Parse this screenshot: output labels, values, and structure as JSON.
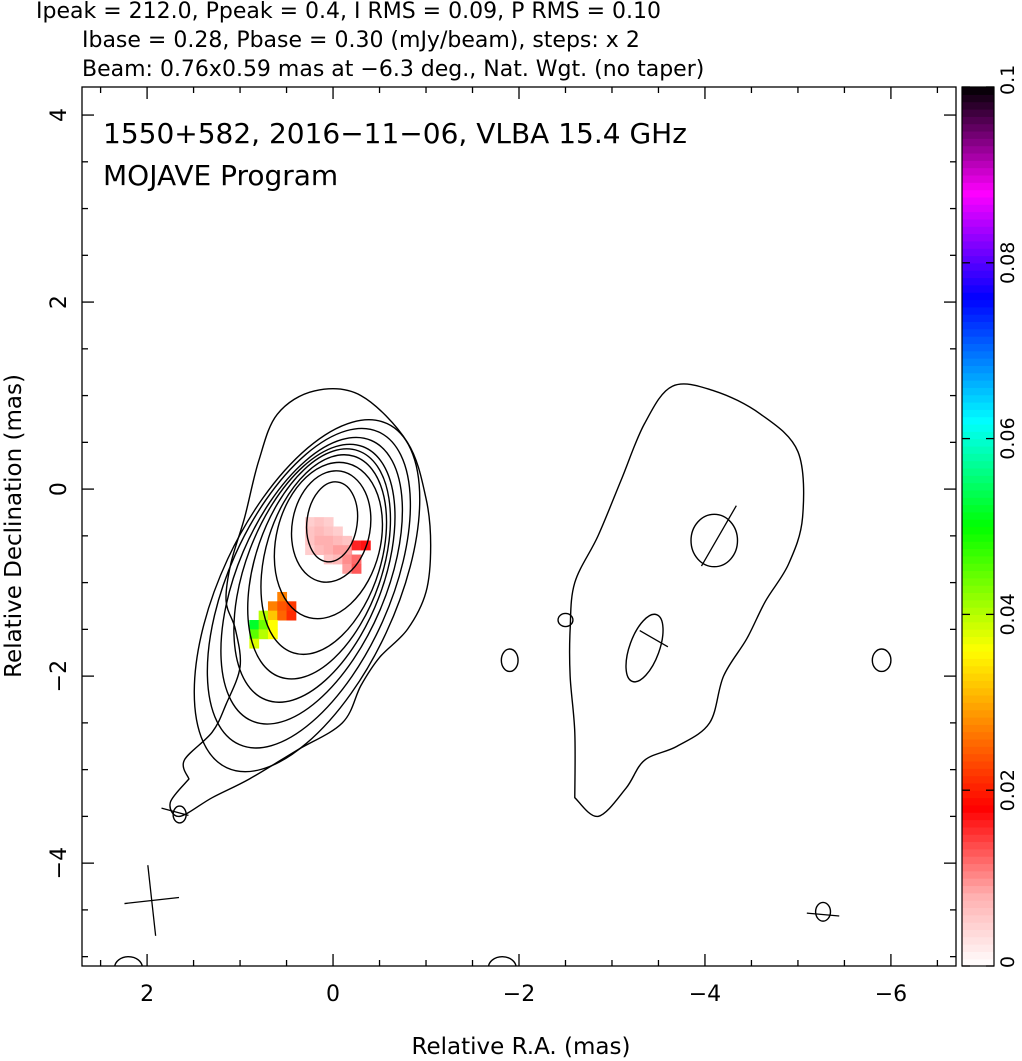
{
  "header": {
    "line1": "Ipeak = 212.0, Ppeak = 0.4, I RMS = 0.09, P RMS = 0.10",
    "line2": "Ibase = 0.28, Pbase = 0.30 (mJy/beam), steps: x 2",
    "line3": "Beam: 0.76x0.59 mas at −6.3 deg., Nat. Wgt. (no taper)"
  },
  "annotations": {
    "source": "1550+582, 2016−11−06, VLBA 15.4 GHz",
    "program": "MOJAVE Program"
  },
  "chart_data": {
    "type": "heatmap",
    "xlabel": "Relative R.A. (mas)",
    "ylabel": "Relative Declination (mas)",
    "xlim": [
      2.7,
      -6.7
    ],
    "ylim": [
      -5.1,
      4.3
    ],
    "x_ticks": [
      2,
      0,
      -2,
      -4,
      -6
    ],
    "x_tick_labels": [
      "2",
      "0",
      "−2",
      "−4",
      "−6"
    ],
    "y_ticks": [
      4,
      2,
      0,
      -2,
      -4
    ],
    "y_tick_labels": [
      "4",
      "2",
      "0",
      "−2",
      "−4"
    ],
    "colorbar": {
      "min": 0,
      "max": 0.1,
      "ticks": [
        0,
        0.02,
        0.04,
        0.06,
        0.08,
        0.1
      ],
      "tick_labels": [
        "0",
        "0.02",
        "0.04",
        "0.06",
        "0.08",
        "0.1"
      ],
      "colors": [
        "#ffffff",
        "#ffb0b0",
        "#ff0000",
        "#ff8000",
        "#ffff00",
        "#00ff00",
        "#00ffff",
        "#0000ff",
        "#ff00ff",
        "#000000"
      ]
    },
    "ipeak_mjy": 212.0,
    "ppeak_mjy": 0.4,
    "irms_mjy": 0.09,
    "prms_mjy": 0.1,
    "ibase_mjy": 0.28,
    "pbase_mjy": 0.3,
    "contour_step_factor": 2,
    "beam": {
      "major_mas": 0.76,
      "minor_mas": 0.59,
      "pa_deg": -6.3
    },
    "core": {
      "x": 0.0,
      "y": -0.35
    },
    "contour_levels": [
      {
        "cx": 0.01,
        "cy": -0.35,
        "rx": 0.27,
        "ry": 0.43,
        "rot": 8
      },
      {
        "cx": 0.02,
        "cy": -0.4,
        "rx": 0.42,
        "ry": 0.6,
        "rot": 10
      },
      {
        "cx": 0.05,
        "cy": -0.55,
        "rx": 0.56,
        "ry": 0.85,
        "rot": 14
      },
      {
        "cx": 0.1,
        "cy": -0.7,
        "rx": 0.62,
        "ry": 1.1,
        "rot": 17
      },
      {
        "cx": 0.15,
        "cy": -0.8,
        "rx": 0.68,
        "ry": 1.28,
        "rot": 19
      },
      {
        "cx": 0.2,
        "cy": -0.9,
        "rx": 0.74,
        "ry": 1.45,
        "rot": 21
      },
      {
        "cx": 0.23,
        "cy": -0.98,
        "rx": 0.8,
        "ry": 1.63,
        "rot": 23
      },
      {
        "cx": 0.26,
        "cy": -1.06,
        "rx": 0.87,
        "ry": 1.83,
        "rot": 24
      },
      {
        "cx": 0.28,
        "cy": -1.14,
        "rx": 0.94,
        "ry": 2.03,
        "rot": 25
      }
    ],
    "outer_contour": [
      [
        1.55,
        -3.1
      ],
      [
        1.6,
        -2.9
      ],
      [
        1.3,
        -2.6
      ],
      [
        1.15,
        -2.3
      ],
      [
        1.0,
        -1.9
      ],
      [
        1.05,
        -1.5
      ],
      [
        1.15,
        -1.2
      ],
      [
        1.1,
        -0.8
      ],
      [
        0.95,
        -0.3
      ],
      [
        0.8,
        0.3
      ],
      [
        0.6,
        0.8
      ],
      [
        0.2,
        1.05
      ],
      [
        -0.3,
        1.0
      ],
      [
        -0.8,
        0.5
      ],
      [
        -1.0,
        -0.1
      ],
      [
        -1.05,
        -0.6
      ],
      [
        -1.0,
        -1.1
      ],
      [
        -0.8,
        -1.5
      ],
      [
        -0.5,
        -1.8
      ],
      [
        -0.3,
        -2.1
      ],
      [
        -0.1,
        -2.5
      ],
      [
        0.4,
        -2.8
      ],
      [
        0.9,
        -3.1
      ],
      [
        1.3,
        -3.3
      ],
      [
        1.65,
        -3.5
      ],
      [
        1.75,
        -3.35
      ],
      [
        1.55,
        -3.1
      ]
    ],
    "second_contour": [
      [
        -2.6,
        -3.3
      ],
      [
        -2.6,
        -2.6
      ],
      [
        -2.55,
        -2.0
      ],
      [
        -2.55,
        -1.5
      ],
      [
        -2.6,
        -1.0
      ],
      [
        -2.85,
        -0.5
      ],
      [
        -3.1,
        0.1
      ],
      [
        -3.35,
        0.7
      ],
      [
        -3.65,
        1.1
      ],
      [
        -4.1,
        1.05
      ],
      [
        -4.6,
        0.8
      ],
      [
        -5.0,
        0.4
      ],
      [
        -5.05,
        -0.3
      ],
      [
        -4.9,
        -0.8
      ],
      [
        -4.65,
        -1.2
      ],
      [
        -4.45,
        -1.6
      ],
      [
        -4.2,
        -2.0
      ],
      [
        -4.05,
        -2.5
      ],
      [
        -3.7,
        -2.75
      ],
      [
        -3.35,
        -2.9
      ],
      [
        -3.15,
        -3.2
      ],
      [
        -2.85,
        -3.5
      ],
      [
        -2.6,
        -3.3
      ]
    ],
    "islands": [
      {
        "cx": 1.65,
        "cy": -3.48,
        "rx": 0.07,
        "ry": 0.09
      },
      {
        "cx": -1.9,
        "cy": -1.83,
        "rx": 0.09,
        "ry": 0.12
      },
      {
        "cx": -2.5,
        "cy": -1.4,
        "rx": 0.08,
        "ry": 0.07
      },
      {
        "cx": -3.35,
        "cy": -1.7,
        "rx": 0.16,
        "ry": 0.38,
        "rot": 20
      },
      {
        "cx": -4.1,
        "cy": -0.55,
        "rx": 0.25,
        "ry": 0.28
      },
      {
        "cx": -5.9,
        "cy": -1.83,
        "rx": 0.1,
        "ry": 0.12
      },
      {
        "cx": -5.27,
        "cy": -4.52,
        "rx": 0.08,
        "ry": 0.1
      },
      {
        "cx": 2.2,
        "cy": -5.12,
        "rx": 0.15,
        "ry": 0.12
      },
      {
        "cx": -1.82,
        "cy": -5.12,
        "rx": 0.15,
        "ry": 0.12
      }
    ],
    "polarization_pixels": [
      {
        "x": 0.25,
        "y": -0.35,
        "p": 0.005
      },
      {
        "x": 0.15,
        "y": -0.35,
        "p": 0.006
      },
      {
        "x": 0.05,
        "y": -0.35,
        "p": 0.005
      },
      {
        "x": 0.25,
        "y": -0.45,
        "p": 0.006
      },
      {
        "x": 0.15,
        "y": -0.45,
        "p": 0.007
      },
      {
        "x": 0.05,
        "y": -0.45,
        "p": 0.006
      },
      {
        "x": -0.05,
        "y": -0.45,
        "p": 0.005
      },
      {
        "x": 0.25,
        "y": -0.55,
        "p": 0.006
      },
      {
        "x": 0.15,
        "y": -0.55,
        "p": 0.008
      },
      {
        "x": 0.05,
        "y": -0.55,
        "p": 0.008
      },
      {
        "x": -0.05,
        "y": -0.55,
        "p": 0.007
      },
      {
        "x": -0.15,
        "y": -0.55,
        "p": 0.006
      },
      {
        "x": 0.25,
        "y": -0.65,
        "p": 0.005
      },
      {
        "x": 0.15,
        "y": -0.65,
        "p": 0.007
      },
      {
        "x": 0.05,
        "y": -0.65,
        "p": 0.008
      },
      {
        "x": -0.05,
        "y": -0.65,
        "p": 0.009
      },
      {
        "x": -0.15,
        "y": -0.65,
        "p": 0.009
      },
      {
        "x": -0.25,
        "y": -0.6,
        "p": 0.016
      },
      {
        "x": -0.35,
        "y": -0.6,
        "p": 0.017
      },
      {
        "x": 0.05,
        "y": -0.75,
        "p": 0.006
      },
      {
        "x": -0.05,
        "y": -0.75,
        "p": 0.007
      },
      {
        "x": -0.15,
        "y": -0.75,
        "p": 0.01
      },
      {
        "x": -0.25,
        "y": -0.75,
        "p": 0.012
      },
      {
        "x": -0.15,
        "y": -0.85,
        "p": 0.009
      },
      {
        "x": -0.25,
        "y": -0.85,
        "p": 0.013
      },
      {
        "x": 0.55,
        "y": -1.15,
        "p": 0.027
      },
      {
        "x": 0.65,
        "y": -1.25,
        "p": 0.027
      },
      {
        "x": 0.55,
        "y": -1.25,
        "p": 0.024
      },
      {
        "x": 0.45,
        "y": -1.25,
        "p": 0.022
      },
      {
        "x": 0.75,
        "y": -1.35,
        "p": 0.04
      },
      {
        "x": 0.65,
        "y": -1.35,
        "p": 0.032
      },
      {
        "x": 0.55,
        "y": -1.35,
        "p": 0.025
      },
      {
        "x": 0.45,
        "y": -1.35,
        "p": 0.021
      },
      {
        "x": 0.85,
        "y": -1.45,
        "p": 0.052
      },
      {
        "x": 0.75,
        "y": -1.45,
        "p": 0.044
      },
      {
        "x": 0.65,
        "y": -1.45,
        "p": 0.036
      },
      {
        "x": 0.85,
        "y": -1.55,
        "p": 0.045
      },
      {
        "x": 0.75,
        "y": -1.55,
        "p": 0.04
      },
      {
        "x": 0.65,
        "y": -1.55,
        "p": 0.036
      },
      {
        "x": 0.85,
        "y": -1.65,
        "p": 0.038
      }
    ],
    "evpa_vectors": [
      {
        "x": -4.15,
        "y": -0.5,
        "len": 0.75,
        "ang": 60
      },
      {
        "x": -3.45,
        "y": -1.6,
        "len": 0.35,
        "ang": -30
      },
      {
        "x": 1.7,
        "y": -3.45,
        "len": 0.3,
        "ang": -15
      },
      {
        "x": -5.27,
        "y": -4.55,
        "len": 0.35,
        "ang": -5
      }
    ]
  }
}
